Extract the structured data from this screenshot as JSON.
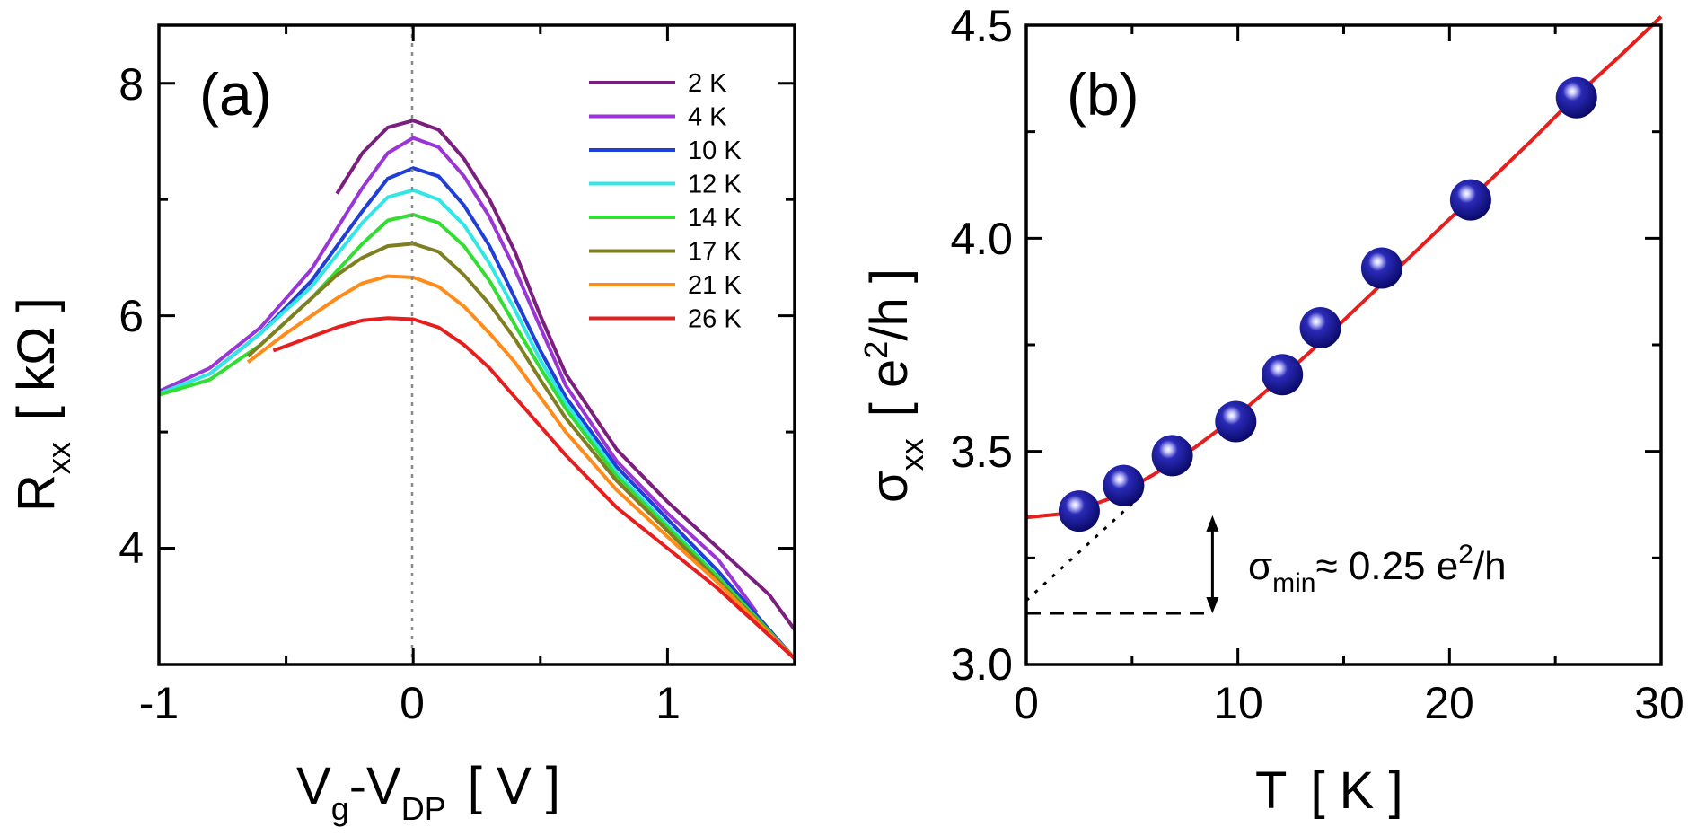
{
  "chart_data": [
    {
      "type": "line",
      "panel_label": "(a)",
      "xlabel": {
        "main": "V",
        "sub1": "g",
        "mid": "-V",
        "sub2": "DP",
        "unit": "[ V ]"
      },
      "ylabel": {
        "main": "R",
        "sub": "xx",
        "unit": "[ kΩ ]"
      },
      "xlim": [
        -1,
        1.5
      ],
      "ylim": [
        3,
        8.5
      ],
      "xticks": [
        -1,
        0,
        1
      ],
      "xtick_labels": [
        "-1",
        "0",
        "1"
      ],
      "yticks": [
        4,
        6,
        8
      ],
      "ytick_labels": [
        "4",
        "6",
        "8"
      ],
      "grid": false,
      "legend_position": "top-right",
      "reference_line": {
        "x": 0,
        "style": "dotted",
        "color": "#888888"
      },
      "series": [
        {
          "name": "2 K",
          "color": "#7b1f7f",
          "x": [
            -0.3,
            -0.2,
            -0.1,
            0,
            0.1,
            0.2,
            0.3,
            0.4,
            0.5,
            0.6,
            0.8,
            1.0,
            1.2,
            1.4,
            1.5
          ],
          "y": [
            7.05,
            7.4,
            7.62,
            7.68,
            7.6,
            7.35,
            7.0,
            6.55,
            6.0,
            5.5,
            4.85,
            4.4,
            4.0,
            3.6,
            3.3
          ]
        },
        {
          "name": "4 K",
          "color": "#9a35d6",
          "x": [
            -1,
            -0.8,
            -0.6,
            -0.4,
            -0.2,
            -0.1,
            0,
            0.1,
            0.2,
            0.3,
            0.4,
            0.5,
            0.6,
            0.8,
            1.0,
            1.2,
            1.35
          ],
          "y": [
            5.35,
            5.55,
            5.9,
            6.4,
            7.1,
            7.4,
            7.53,
            7.45,
            7.2,
            6.85,
            6.4,
            5.9,
            5.4,
            4.75,
            4.3,
            3.9,
            3.45
          ]
        },
        {
          "name": "10 K",
          "color": "#1f3fd6",
          "x": [
            -0.8,
            -0.6,
            -0.4,
            -0.2,
            -0.1,
            0,
            0.1,
            0.2,
            0.3,
            0.4,
            0.5,
            0.6,
            0.8,
            1.0,
            1.2,
            1.5
          ],
          "y": [
            5.5,
            5.85,
            6.3,
            6.9,
            7.18,
            7.27,
            7.2,
            6.95,
            6.6,
            6.15,
            5.7,
            5.3,
            4.7,
            4.25,
            3.8,
            3.05
          ]
        },
        {
          "name": "12 K",
          "color": "#33e6e6",
          "x": [
            -1,
            -0.8,
            -0.6,
            -0.4,
            -0.2,
            -0.1,
            0,
            0.1,
            0.2,
            0.3,
            0.4,
            0.5,
            0.6,
            0.8,
            1.0,
            1.2,
            1.5
          ],
          "y": [
            5.33,
            5.5,
            5.85,
            6.25,
            6.8,
            7.02,
            7.08,
            7.0,
            6.78,
            6.45,
            6.05,
            5.62,
            5.25,
            4.65,
            4.2,
            3.75,
            3.05
          ]
        },
        {
          "name": "14 K",
          "color": "#33dd33",
          "x": [
            -1,
            -0.8,
            -0.6,
            -0.4,
            -0.2,
            -0.1,
            0,
            0.1,
            0.2,
            0.3,
            0.4,
            0.5,
            0.6,
            0.8,
            1.0,
            1.2,
            1.5
          ],
          "y": [
            5.32,
            5.45,
            5.75,
            6.15,
            6.62,
            6.82,
            6.87,
            6.8,
            6.6,
            6.3,
            5.92,
            5.55,
            5.2,
            4.62,
            4.18,
            3.75,
            3.05
          ]
        },
        {
          "name": "17 K",
          "color": "#7f7f22",
          "x": [
            -0.65,
            -0.5,
            -0.3,
            -0.2,
            -0.1,
            0,
            0.1,
            0.2,
            0.3,
            0.4,
            0.5,
            0.6,
            0.8,
            1.0,
            1.2,
            1.5
          ],
          "y": [
            5.65,
            5.95,
            6.35,
            6.5,
            6.6,
            6.62,
            6.55,
            6.35,
            6.1,
            5.8,
            5.45,
            5.12,
            4.58,
            4.15,
            3.72,
            3.05
          ]
        },
        {
          "name": "21 K",
          "color": "#ff8c1a",
          "x": [
            -0.65,
            -0.5,
            -0.3,
            -0.2,
            -0.1,
            0,
            0.1,
            0.2,
            0.3,
            0.4,
            0.5,
            0.6,
            0.8,
            1.0,
            1.2,
            1.5
          ],
          "y": [
            5.6,
            5.85,
            6.15,
            6.28,
            6.34,
            6.33,
            6.25,
            6.08,
            5.85,
            5.6,
            5.3,
            5.0,
            4.5,
            4.1,
            3.7,
            3.05
          ]
        },
        {
          "name": "26 K",
          "color": "#e61e1e",
          "x": [
            -0.55,
            -0.4,
            -0.3,
            -0.2,
            -0.1,
            0,
            0.1,
            0.2,
            0.3,
            0.4,
            0.5,
            0.6,
            0.8,
            1.0,
            1.2,
            1.5
          ],
          "y": [
            5.7,
            5.82,
            5.9,
            5.96,
            5.98,
            5.97,
            5.9,
            5.75,
            5.55,
            5.3,
            5.05,
            4.8,
            4.35,
            4.0,
            3.65,
            3.05
          ]
        }
      ]
    },
    {
      "type": "scatter",
      "panel_label": "(b)",
      "xlabel": {
        "main": "T",
        "unit": "[ K ]"
      },
      "ylabel": {
        "main": "σ",
        "sub": "xx",
        "unit_pre": "[ e",
        "unit_sup": "2",
        "unit_post": "/h ]"
      },
      "xlim": [
        0,
        30
      ],
      "ylim": [
        3.0,
        4.5
      ],
      "xticks": [
        0,
        10,
        20,
        30
      ],
      "xtick_labels": [
        "0",
        "10",
        "20",
        "30"
      ],
      "yticks": [
        3.0,
        3.5,
        4.0,
        4.5
      ],
      "ytick_labels": [
        "3.0",
        "3.5",
        "4.0",
        "4.5"
      ],
      "grid": false,
      "series": [
        {
          "name": "data",
          "marker": "sphere",
          "color": "#1a1aa0",
          "x": [
            2.5,
            4.6,
            6.9,
            9.9,
            12.1,
            13.9,
            16.8,
            21.0,
            26.0
          ],
          "y": [
            3.36,
            3.42,
            3.49,
            3.57,
            3.68,
            3.79,
            3.93,
            4.09,
            4.33
          ]
        }
      ],
      "fit": {
        "name": "fit",
        "color": "#e61e1e",
        "x": [
          0,
          2,
          4,
          6,
          8,
          10,
          12,
          14,
          16,
          18,
          20,
          22,
          24,
          26,
          28,
          30
        ],
        "y": [
          3.345,
          3.355,
          3.39,
          3.445,
          3.51,
          3.585,
          3.67,
          3.76,
          3.855,
          3.95,
          4.045,
          4.14,
          4.235,
          4.335,
          4.425,
          4.52
        ]
      },
      "extrapolation": {
        "style": "dotted",
        "x": [
          0,
          5.5
        ],
        "y": [
          3.15,
          3.4
        ]
      },
      "baseline": {
        "style": "dashed",
        "x": [
          0,
          8.8
        ],
        "y": [
          3.12,
          3.12
        ]
      },
      "arrow": {
        "x": 8.8,
        "y": [
          3.12,
          3.35
        ]
      },
      "annotation": {
        "pre": "σ",
        "sub": "min",
        "post": "≈ 0.25 e",
        "sup": "2",
        "tail": "/h"
      }
    }
  ]
}
